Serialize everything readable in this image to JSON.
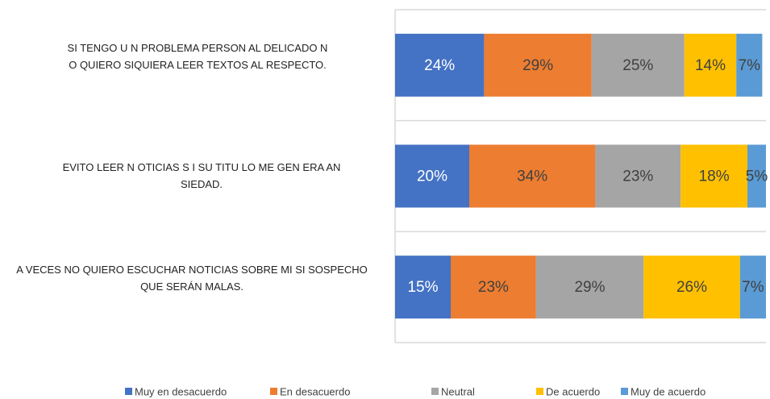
{
  "chart_data": {
    "type": "bar",
    "orientation": "horizontal",
    "stacked": true,
    "categories": [
      "SI TENGO U N PROBLEMA PERSON AL DELICADO N O QUIERO SIQUIERA LEER TEXTOS AL RESPECTO.",
      "EVITO LEER N OTICIAS S I SU TITU LO ME GEN ERA AN SIEDAD.",
      "A VECES NO QUIERO ESCUCHAR NOTICIAS SOBRE MI SI SOSPECHO QUE SERÁN MALAS."
    ],
    "series": [
      {
        "name": "Muy en desacuerdo",
        "color": "#4472c4",
        "values": [
          24,
          20,
          15
        ],
        "value_labels": [
          "24%",
          "20%",
          "15%"
        ]
      },
      {
        "name": "En desacuerdo",
        "color": "#ed7d31",
        "values": [
          29,
          34,
          23
        ],
        "value_labels": [
          "29%",
          "34%",
          "23%"
        ]
      },
      {
        "name": "Neutral",
        "color": "#a5a5a5",
        "values": [
          25,
          23,
          29
        ],
        "value_labels": [
          "25%",
          "23%",
          "29%"
        ]
      },
      {
        "name": "De acuerdo",
        "color": "#ffc000",
        "values": [
          14,
          18,
          26
        ],
        "value_labels": [
          "14%",
          "18%",
          "26%"
        ]
      },
      {
        "name": "Muy de acuerdo",
        "color": "#5b9bd5",
        "values": [
          7,
          5,
          7
        ],
        "value_labels": [
          "7%",
          "5%",
          "7%"
        ]
      }
    ],
    "xlim": [
      0,
      100
    ],
    "legend": "bottom"
  }
}
